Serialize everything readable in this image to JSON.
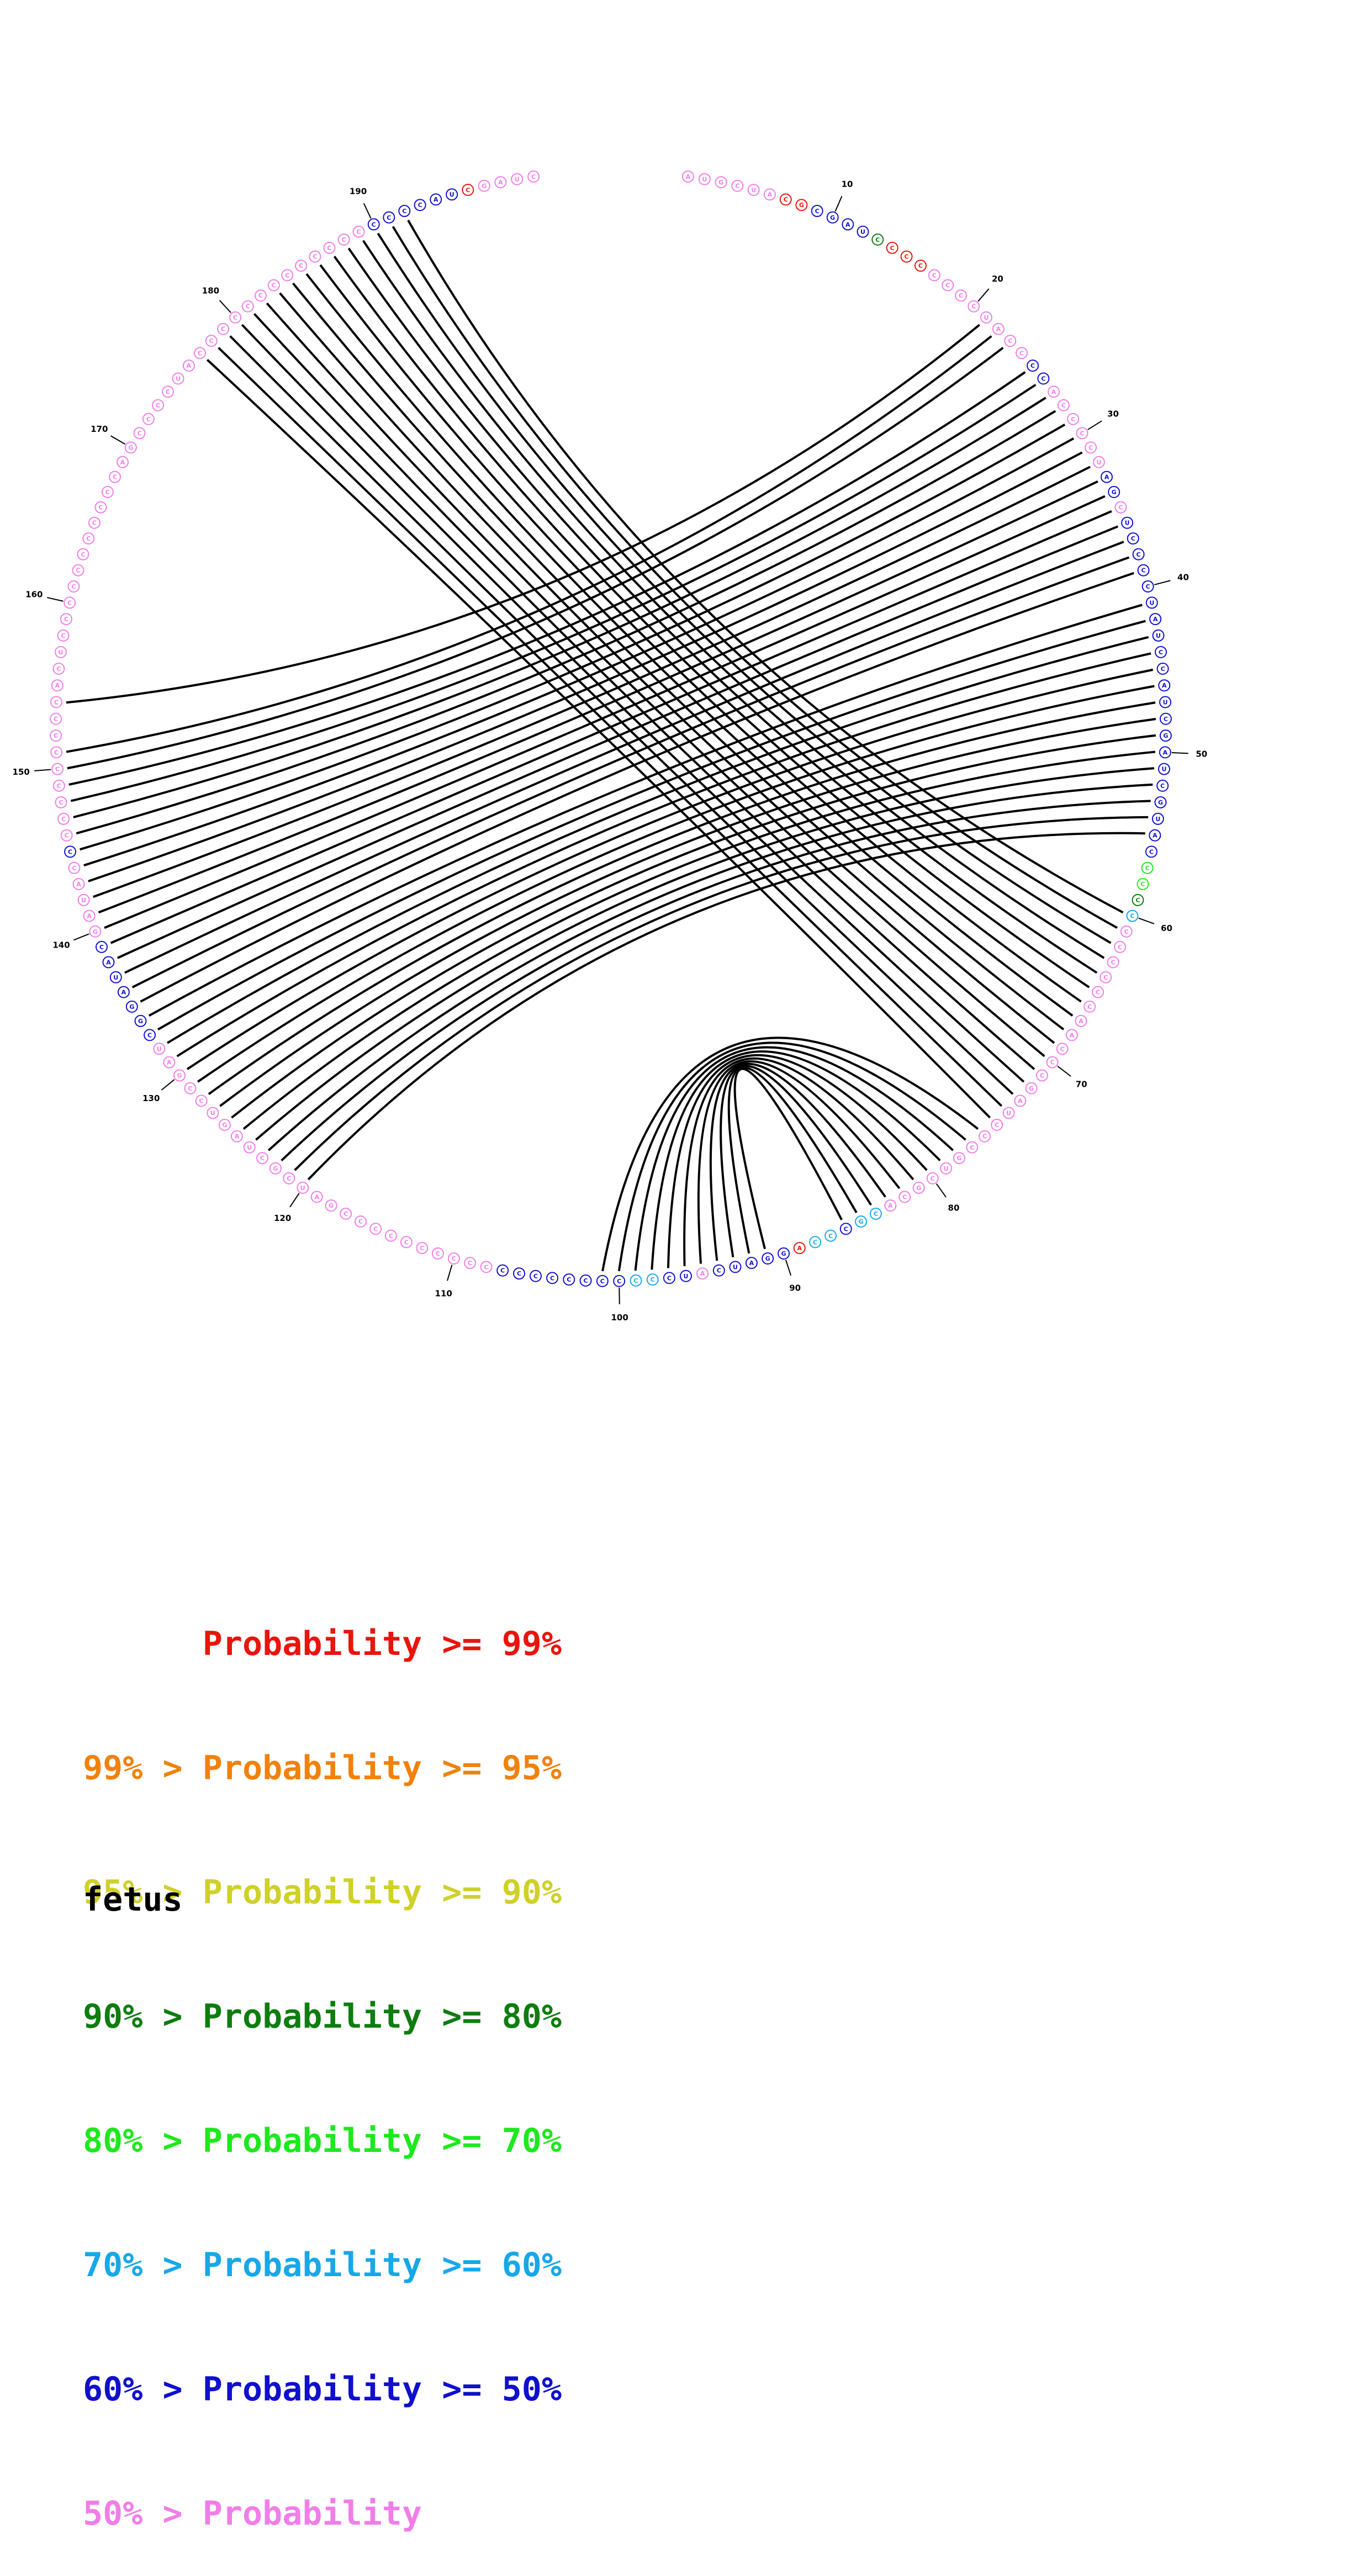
{
  "sequence": "AUGCUACGCGAUCCCCCCCCUACCCCACCCCUAGCUCCCCUAUCCAUCGAUCGUACCCCCCCCCCCAACCCGAUCCCGUCGCACGCCCAGGAUCAUCCCCCCCCCCCCCCCCCCCCCGAUCGCUAGUCCGAUCGGAUACGAUACCCCCCCCCCCACUCCCCCCCCCCCAGCCCCUACCCCCCCCCCCCCCCCCAUCGAUC",
  "nucleotide_colors": {
    "A": "#e8251c",
    "U": "#e88a14",
    "G": "#1515d6",
    "C": "#1515d6"
  },
  "probability_class_per_position": "7777770066663000777777776677777766766666666666666666666644357777777777777777777777755655066666766556666666677777777777777777777777776666666777776777777777777777777777777777777777777777777776666660",
  "tick_labels": [
    "10",
    "20",
    "30",
    "40",
    "50",
    "60",
    "70",
    "80",
    "90",
    "100",
    "110",
    "120",
    "130",
    "140",
    "150",
    "160",
    "170",
    "180",
    "190"
  ],
  "arcs": [
    [
      21,
      154
    ],
    [
      22,
      151
    ],
    [
      23,
      150
    ],
    [
      25,
      149
    ],
    [
      26,
      148
    ],
    [
      27,
      147
    ],
    [
      28,
      146
    ],
    [
      29,
      145
    ],
    [
      30,
      144
    ],
    [
      31,
      143
    ],
    [
      32,
      142
    ],
    [
      33,
      141
    ],
    [
      34,
      140
    ],
    [
      35,
      139
    ],
    [
      36,
      138
    ],
    [
      37,
      137
    ],
    [
      38,
      136
    ],
    [
      39,
      135
    ],
    [
      41,
      134
    ],
    [
      42,
      133
    ],
    [
      43,
      132
    ],
    [
      44,
      131
    ],
    [
      45,
      130
    ],
    [
      46,
      129
    ],
    [
      47,
      128
    ],
    [
      48,
      127
    ],
    [
      49,
      126
    ],
    [
      50,
      125
    ],
    [
      51,
      124
    ],
    [
      52,
      123
    ],
    [
      53,
      122
    ],
    [
      54,
      121
    ],
    [
      55,
      120
    ],
    [
      60,
      192
    ],
    [
      61,
      191
    ],
    [
      62,
      190
    ],
    [
      63,
      189
    ],
    [
      64,
      188
    ],
    [
      65,
      187
    ],
    [
      66,
      186
    ],
    [
      67,
      185
    ],
    [
      68,
      184
    ],
    [
      69,
      183
    ],
    [
      70,
      182
    ],
    [
      71,
      181
    ],
    [
      72,
      180
    ],
    [
      73,
      179
    ],
    [
      74,
      178
    ],
    [
      75,
      177
    ],
    [
      76,
      101
    ],
    [
      77,
      100
    ],
    [
      78,
      99
    ],
    [
      79,
      98
    ],
    [
      80,
      97
    ],
    [
      81,
      96
    ],
    [
      82,
      95
    ],
    [
      83,
      94
    ],
    [
      84,
      93
    ],
    [
      85,
      92
    ],
    [
      86,
      91
    ]
  ],
  "legend": [
    {
      "text": "      Probability >= 99%",
      "color": "#e8150c"
    },
    {
      "text": "99% > Probability >= 95%",
      "color": "#f0820c"
    },
    {
      "text": "95% > Probability >= 90%",
      "color": "#cfd12a"
    },
    {
      "text": "90% > Probability >= 80%",
      "color": "#0f7d0f"
    },
    {
      "text": "80% > Probability >= 70%",
      "color": "#1ee81e"
    },
    {
      "text": "70% > Probability >= 60%",
      "color": "#17a8e8"
    },
    {
      "text": "60% > Probability >= 50%",
      "color": "#1010cc"
    },
    {
      "text": "50% > Probability",
      "color": "#f07ee8"
    }
  ],
  "class_colors": [
    "#e8150c",
    "#f0820c",
    "#cfd12a",
    "#0f7d0f",
    "#1ee81e",
    "#17a8e8",
    "#1010cc",
    "#f07ee8"
  ],
  "caption": "fetus"
}
